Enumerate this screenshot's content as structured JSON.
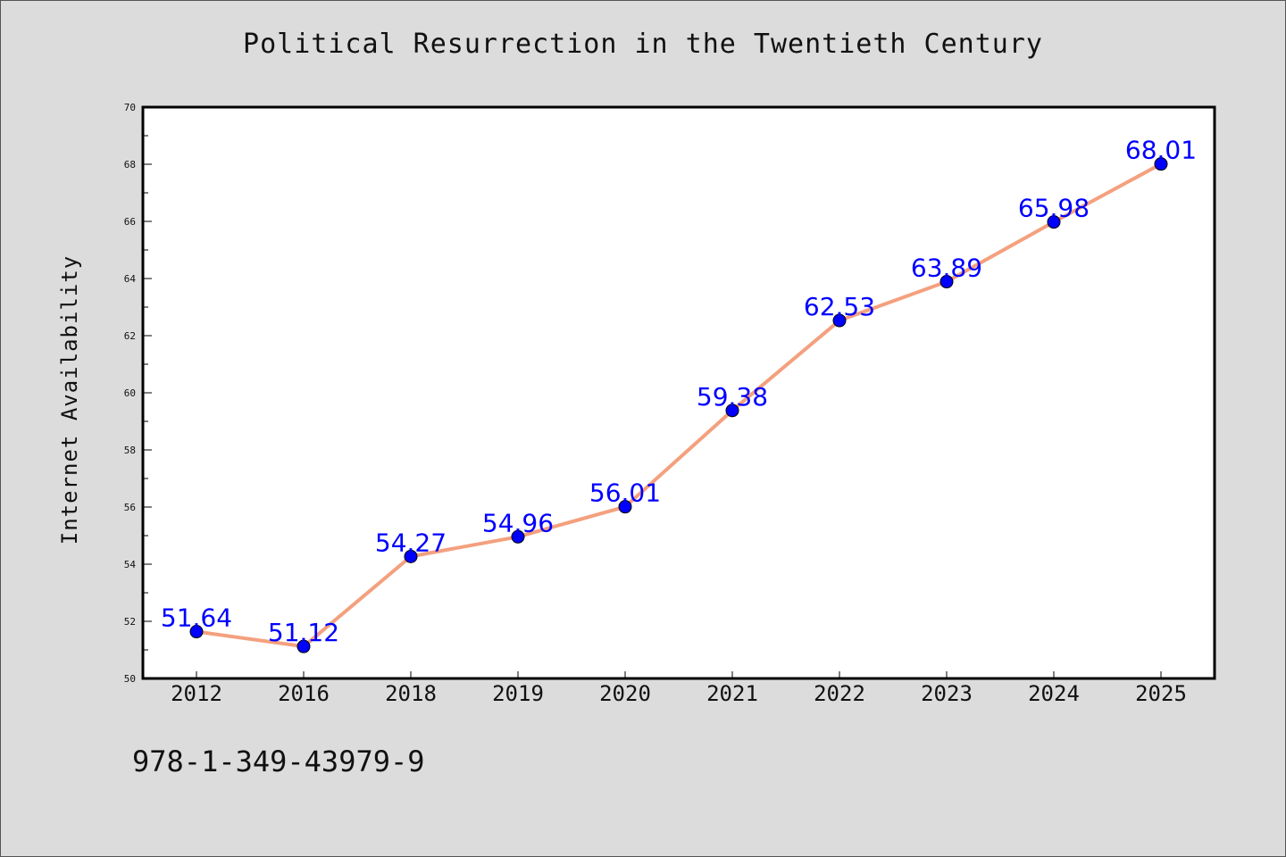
{
  "chart_data": {
    "type": "line",
    "title": "Political Resurrection in the Twentieth Century",
    "xlabel": "",
    "ylabel": "Internet Availability",
    "categories": [
      "2012",
      "2016",
      "2018",
      "2019",
      "2020",
      "2021",
      "2022",
      "2023",
      "2024",
      "2025"
    ],
    "series": [
      {
        "values": [
          51.64,
          51.12,
          54.27,
          54.96,
          56.01,
          59.38,
          62.53,
          63.89,
          65.98,
          68.01
        ],
        "labels": [
          "51.64",
          "51.12",
          "54.27",
          "54.96",
          "56.01",
          "59.38",
          "62.53",
          "63.89",
          "65.98",
          "68.01"
        ]
      }
    ],
    "ylim": [
      50,
      70
    ],
    "yticks": [
      "50",
      "52",
      "54",
      "56",
      "58",
      "60",
      "62",
      "64",
      "66",
      "68",
      "70"
    ],
    "grid": false,
    "line_color": "#f4a07e",
    "marker_color": "#0000ff",
    "label_color": "#0000ff",
    "background_color": "#dcdcdc",
    "plot_background": "#ffffff"
  },
  "footnote": "978-1-349-43979-9"
}
